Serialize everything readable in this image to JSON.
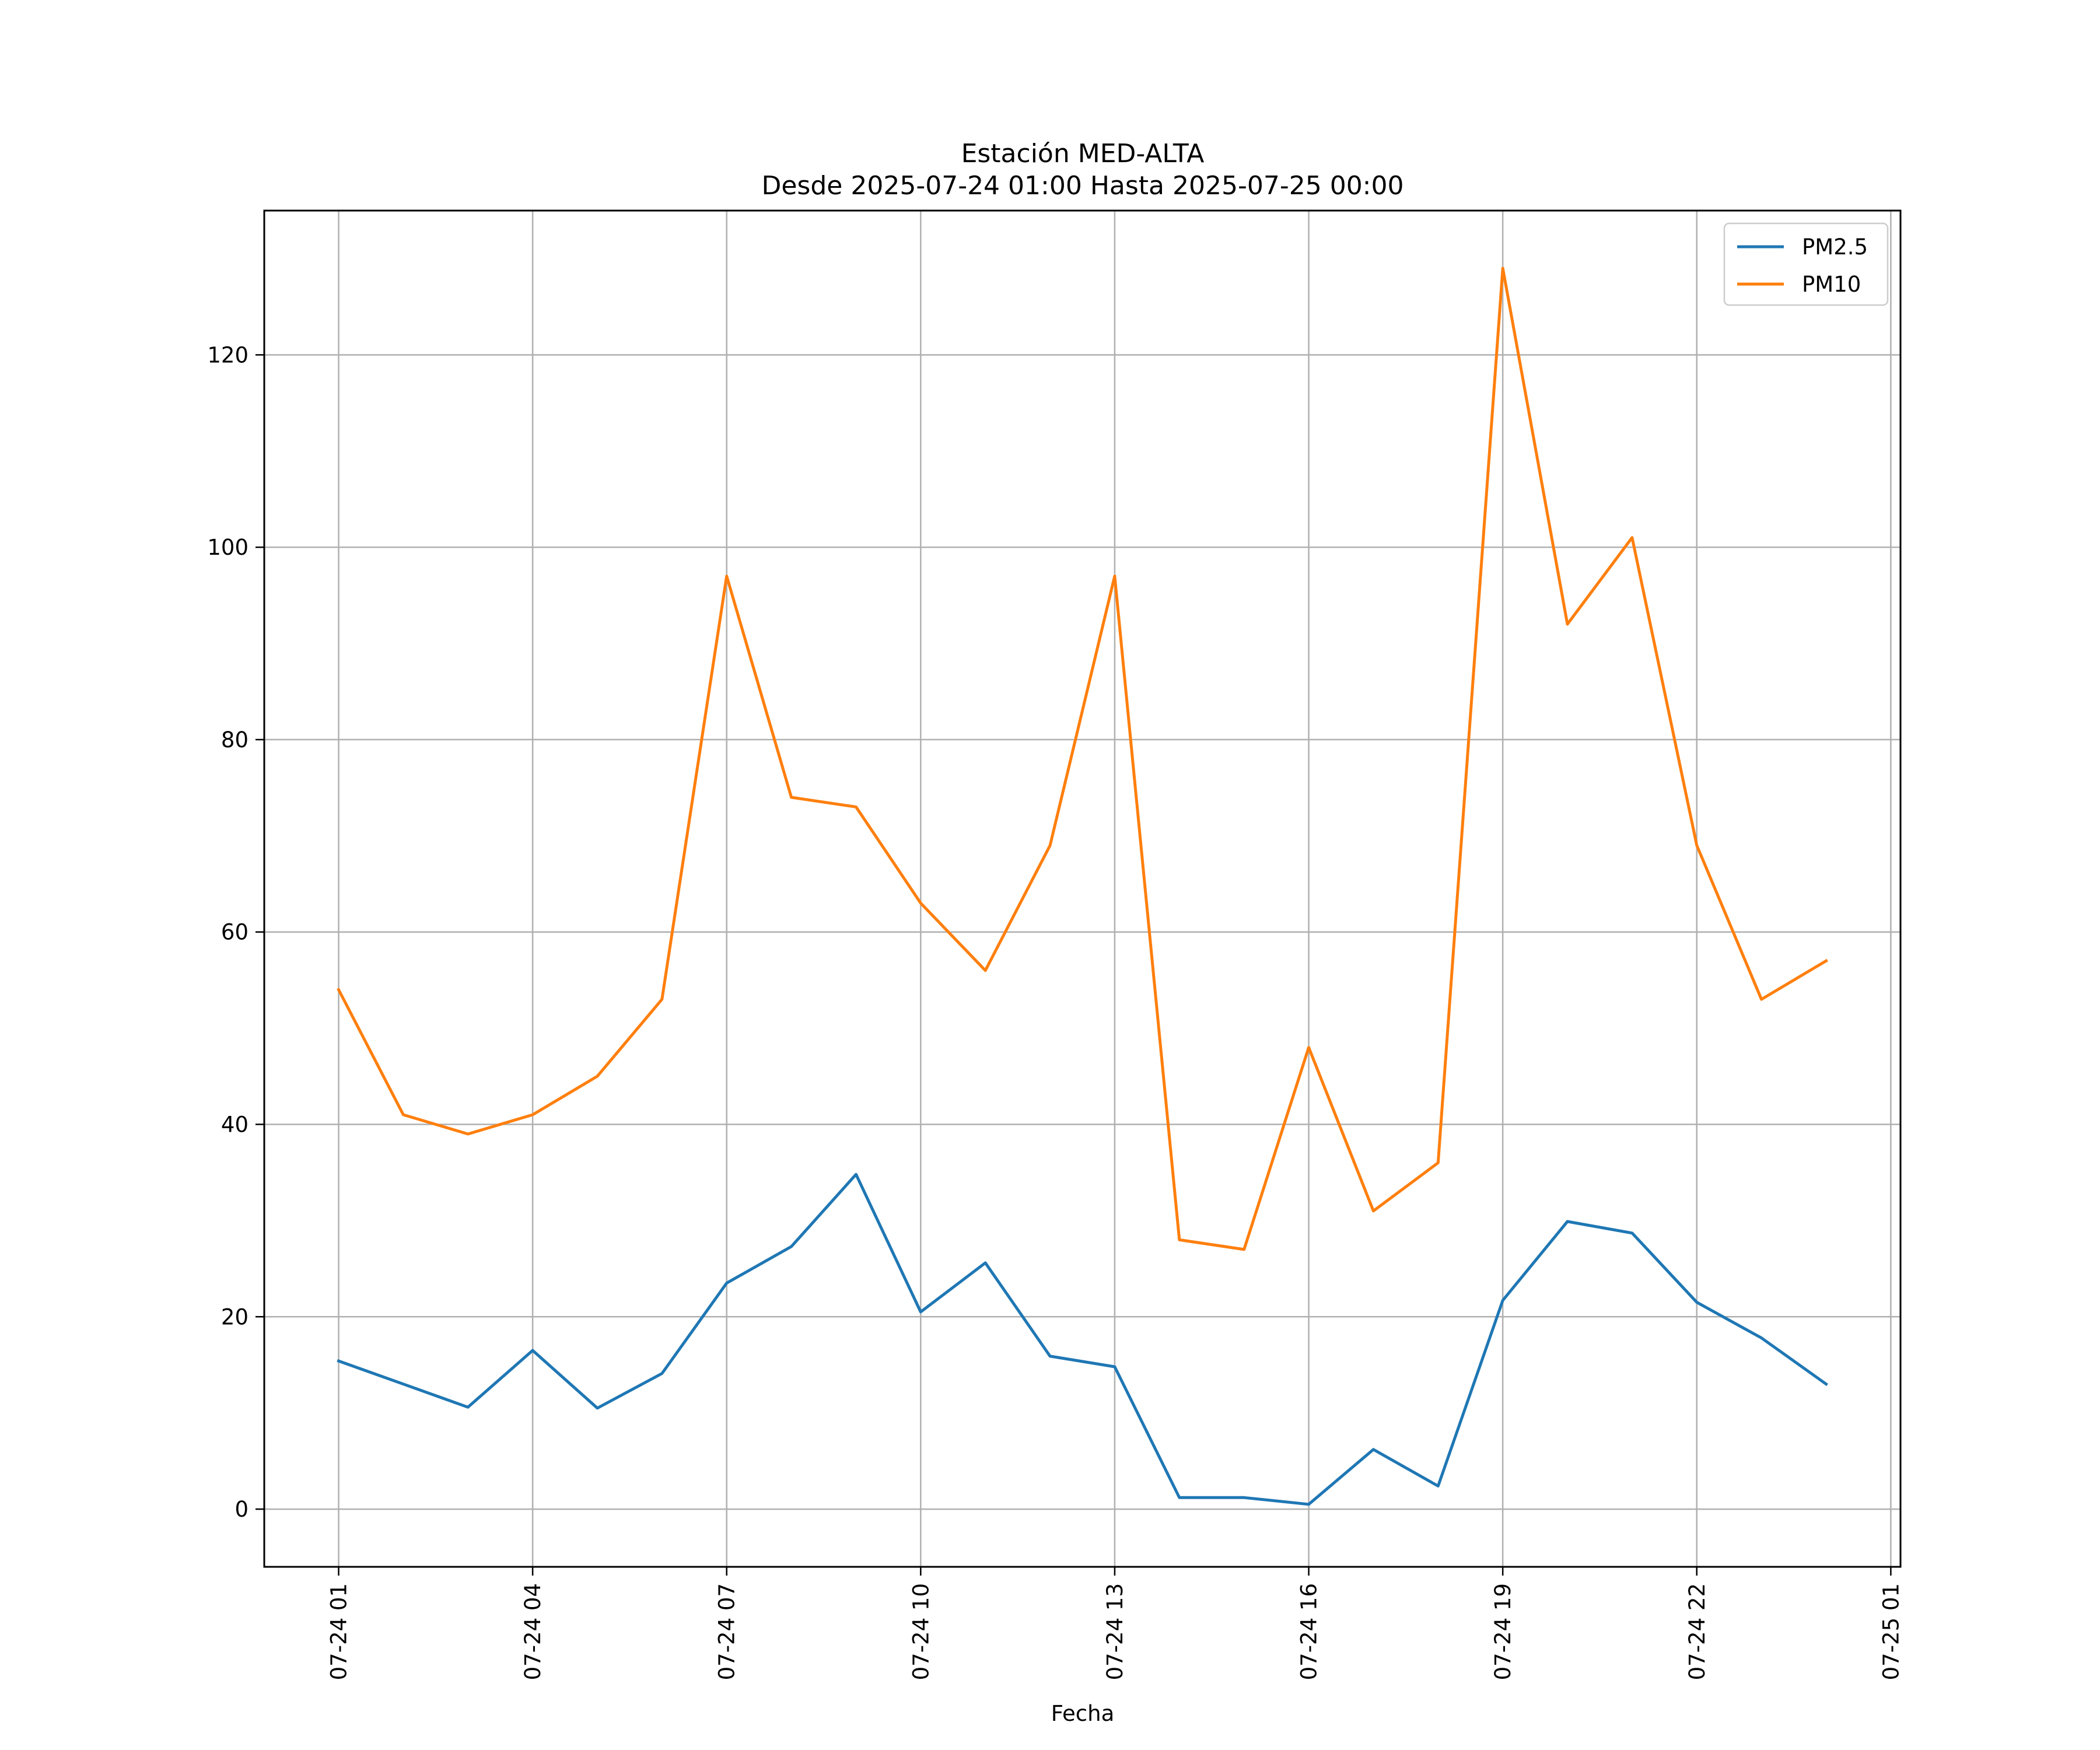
{
  "chart_data": {
    "type": "line",
    "title": "Estación MED-ALTA",
    "subtitle": "Desde 2025-07-24 01:00 Hasta 2025-07-25 00:00",
    "xlabel": "Fecha",
    "ylabel": "",
    "x": [
      "2025-07-24 01:00",
      "2025-07-24 02:00",
      "2025-07-24 03:00",
      "2025-07-24 04:00",
      "2025-07-24 05:00",
      "2025-07-24 06:00",
      "2025-07-24 07:00",
      "2025-07-24 08:00",
      "2025-07-24 09:00",
      "2025-07-24 10:00",
      "2025-07-24 11:00",
      "2025-07-24 12:00",
      "2025-07-24 13:00",
      "2025-07-24 14:00",
      "2025-07-24 15:00",
      "2025-07-24 16:00",
      "2025-07-24 17:00",
      "2025-07-24 18:00",
      "2025-07-24 19:00",
      "2025-07-24 20:00",
      "2025-07-24 21:00",
      "2025-07-24 22:00",
      "2025-07-24 23:00",
      "2025-07-25 00:00"
    ],
    "x_ticks": [
      "07-24 01",
      "07-24 04",
      "07-24 07",
      "07-24 10",
      "07-24 13",
      "07-24 16",
      "07-24 19",
      "07-24 22",
      "07-25 01"
    ],
    "x_tick_values": [
      "2025-07-24 01:00",
      "2025-07-24 04:00",
      "2025-07-24 07:00",
      "2025-07-24 10:00",
      "2025-07-24 13:00",
      "2025-07-24 16:00",
      "2025-07-24 19:00",
      "2025-07-24 22:00",
      "2025-07-25 01:00"
    ],
    "xlim": [
      "2025-07-23 23:51",
      "2025-07-25 01:09"
    ],
    "y_ticks": [
      0,
      20,
      40,
      60,
      80,
      100,
      120
    ],
    "ylim": [
      -6,
      135
    ],
    "grid": true,
    "legend_position": "top-right",
    "series": [
      {
        "name": "PM2.5",
        "color": "#1f77b4",
        "values": [
          15.4,
          13.0,
          10.6,
          16.5,
          10.5,
          14.1,
          23.5,
          27.3,
          34.8,
          20.5,
          25.6,
          15.9,
          14.8,
          1.2,
          1.2,
          0.5,
          6.2,
          2.4,
          21.7,
          29.9,
          28.7,
          21.5,
          17.8,
          13.0
        ]
      },
      {
        "name": "PM10",
        "color": "#ff7f0e",
        "values": [
          54,
          41,
          39,
          41,
          45,
          53,
          97,
          74,
          73,
          63,
          56,
          69,
          97,
          28,
          27,
          48,
          31,
          36,
          129,
          92,
          101,
          69,
          53,
          57
        ]
      }
    ]
  }
}
